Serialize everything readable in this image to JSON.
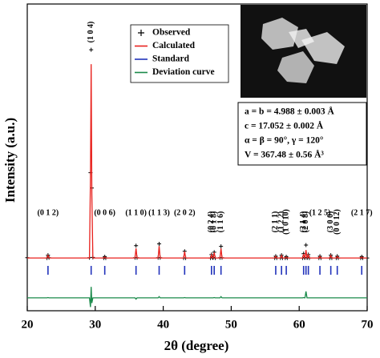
{
  "chart_data": {
    "type": "line",
    "xlabel": "2θ (degree)",
    "ylabel": "Intensity (a.u.)",
    "xlim": [
      20,
      70
    ],
    "xticks": [
      20,
      30,
      40,
      50,
      60,
      70
    ],
    "ylim": [
      0,
      100
    ],
    "x": [
      20,
      22.9,
      23.05,
      23.2,
      29.15,
      29.3,
      29.4,
      29.5,
      29.65,
      31.25,
      31.4,
      31.55,
      35.85,
      36.0,
      36.15,
      39.25,
      39.4,
      39.55,
      43.0,
      43.15,
      43.3,
      46.95,
      47.1,
      47.25,
      47.35,
      47.5,
      47.65,
      48.35,
      48.5,
      48.65,
      56.4,
      56.55,
      56.7,
      57.25,
      57.4,
      57.55,
      57.95,
      58.1,
      58.25,
      60.5,
      60.65,
      60.8,
      60.85,
      61.0,
      61.15,
      61.2,
      61.35,
      61.5,
      62.9,
      63.05,
      63.2,
      64.5,
      64.65,
      64.8,
      65.45,
      65.6,
      65.75,
      69.05,
      69.2,
      69.35,
      70
    ],
    "series": [
      {
        "name": "Observed",
        "type": "scatter",
        "color": "#000000",
        "values": [
          17.3,
          17.2,
          18.1,
          17.3,
          17.3,
          45,
          85.1,
          40,
          17.4,
          17.2,
          17.6,
          17.2,
          17.3,
          21.2,
          17.3,
          17.3,
          21.8,
          17.3,
          17.2,
          19.4,
          17.2,
          17.2,
          18.3,
          17.3,
          17.3,
          19.1,
          17.2,
          17.3,
          21.0,
          17.3,
          17.2,
          17.8,
          17.2,
          17.2,
          18.1,
          17.2,
          17.2,
          17.6,
          17.2,
          17.2,
          18.6,
          17.3,
          17.3,
          21.4,
          17.3,
          17.3,
          18.3,
          17.2,
          17.2,
          17.8,
          17.2,
          17.2,
          18.1,
          17.2,
          17.2,
          17.8,
          17.2,
          17.2,
          17.6,
          17.2,
          17.2
        ]
      },
      {
        "name": "Calculated",
        "type": "line",
        "color": "#e8211d",
        "values": [
          17.2,
          17.2,
          18.0,
          17.2,
          17.2,
          44,
          80.4,
          38,
          17.2,
          17.2,
          17.5,
          17.2,
          17.2,
          20.3,
          17.2,
          17.2,
          21.1,
          17.2,
          17.2,
          19.3,
          17.2,
          17.2,
          18.2,
          17.2,
          17.2,
          19.0,
          17.2,
          17.2,
          20.3,
          17.2,
          17.2,
          17.7,
          17.2,
          17.2,
          18.0,
          17.2,
          17.2,
          17.5,
          17.2,
          17.2,
          18.5,
          17.2,
          17.2,
          19.8,
          17.2,
          17.2,
          18.2,
          17.2,
          17.2,
          17.7,
          17.2,
          17.2,
          18.0,
          17.2,
          17.2,
          17.7,
          17.2,
          17.2,
          17.5,
          17.2,
          17.2
        ]
      },
      {
        "name": "Standard",
        "type": "ticks",
        "color": "#2233bb",
        "x": [
          23.05,
          29.4,
          31.4,
          36.0,
          39.4,
          43.15,
          47.1,
          47.5,
          48.5,
          56.55,
          57.4,
          58.1,
          60.65,
          61.0,
          61.35,
          63.05,
          64.65,
          65.6,
          69.2
        ]
      },
      {
        "name": "Deviation curve",
        "type": "line",
        "color": "#1a8a4a",
        "values": [
          4.2,
          4.2,
          4.3,
          4.2,
          4.2,
          1.2,
          7.8,
          2.5,
          4.2,
          4.2,
          4.2,
          4.2,
          4.2,
          3.8,
          4.2,
          4.2,
          4.6,
          4.2,
          4.2,
          4.3,
          4.2,
          4.2,
          4.2,
          4.2,
          4.2,
          4.3,
          4.2,
          4.2,
          4.6,
          4.2,
          4.2,
          4.2,
          4.2,
          4.2,
          4.2,
          4.2,
          4.2,
          4.2,
          4.2,
          4.2,
          4.3,
          4.2,
          4.2,
          6.3,
          4.2,
          4.2,
          4.2,
          4.2,
          4.2,
          4.2,
          4.2,
          4.2,
          4.2,
          4.2,
          4.2,
          4.2,
          4.2,
          4.2,
          4.2,
          4.2,
          4.2
        ]
      }
    ],
    "peak_labels": [
      {
        "x": 23.05,
        "text": "(0 1 2)"
      },
      {
        "x": 29.4,
        "text": "(1 0 4)"
      },
      {
        "x": 31.4,
        "text": "(0 0 6)"
      },
      {
        "x": 36.0,
        "text": "(1 1 0)"
      },
      {
        "x": 39.4,
        "text": "(1 1 3)"
      },
      {
        "x": 43.15,
        "text": "(2 0 2)"
      },
      {
        "x": 47.1,
        "text": "(0 2 4)"
      },
      {
        "x": 47.5,
        "text": "(0 1 8)"
      },
      {
        "x": 48.5,
        "text": "(1 1 6)"
      },
      {
        "x": 56.55,
        "text": "(2 1 1)"
      },
      {
        "x": 57.4,
        "text": "(1 2 2)"
      },
      {
        "x": 58.1,
        "text": "(1 0 10)"
      },
      {
        "x": 60.65,
        "text": "(2 1 4)"
      },
      {
        "x": 61.0,
        "text": "(2 0 8)"
      },
      {
        "x": 63.05,
        "text": "(1 2 5)"
      },
      {
        "x": 64.65,
        "text": "(3 0 0)"
      },
      {
        "x": 65.6,
        "text": "(0 0 12)"
      },
      {
        "x": 69.2,
        "text": "(2 1 7)"
      }
    ],
    "parameters": [
      "a = b = 4.988 ± 0.003 Å",
      "c = 17.052 ± 0.002 Å",
      "α = β = 90°, γ = 120°",
      "V = 367.48 ± 0.56 Å³"
    ]
  }
}
